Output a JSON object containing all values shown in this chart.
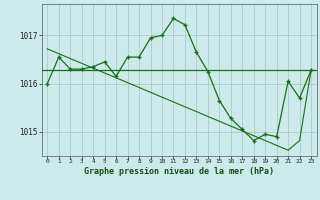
{
  "title": "Graphe pression niveau de la mer (hPa)",
  "background_color": "#cceaea",
  "grid_color": "#aacccc",
  "line_color": "#1a6e1a",
  "marker_color": "#1a6e1a",
  "hline_color": "#1a6e1a",
  "x_values": [
    0,
    1,
    2,
    3,
    4,
    5,
    6,
    7,
    8,
    9,
    10,
    11,
    12,
    13,
    14,
    15,
    16,
    17,
    18,
    19,
    20,
    21,
    22,
    23
  ],
  "y_main": [
    1016.0,
    1016.55,
    1016.3,
    1016.3,
    1016.35,
    1016.45,
    1016.15,
    1016.55,
    1016.55,
    1016.95,
    1017.0,
    1017.35,
    1017.22,
    1016.65,
    1016.25,
    1015.65,
    1015.28,
    1015.05,
    1014.82,
    1014.95,
    1014.9,
    1016.05,
    1015.7,
    1016.28
  ],
  "y_trend": [
    1016.72,
    1016.62,
    1016.52,
    1016.42,
    1016.32,
    1016.22,
    1016.12,
    1016.02,
    1015.92,
    1015.82,
    1015.72,
    1015.62,
    1015.52,
    1015.42,
    1015.32,
    1015.22,
    1015.12,
    1015.02,
    1014.92,
    1014.82,
    1014.72,
    1014.62,
    1014.82,
    1016.28
  ],
  "hline_y": 1016.28,
  "ylim_min": 1014.5,
  "ylim_max": 1017.65,
  "yticks": [
    1015,
    1016,
    1017
  ],
  "xlim_min": -0.5,
  "xlim_max": 23.5
}
